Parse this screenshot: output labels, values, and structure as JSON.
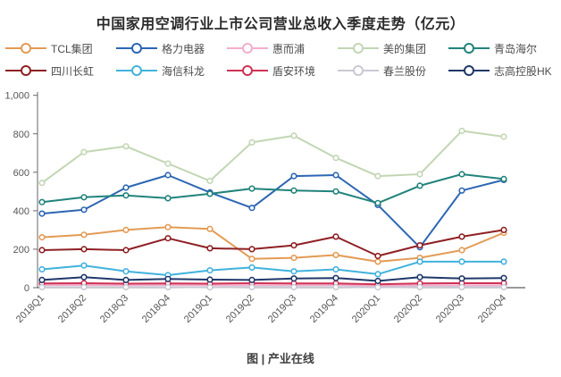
{
  "page": {
    "background": "#ffffff",
    "text_color": "#2b2b2b",
    "axis_color": "#666666"
  },
  "chart_data": {
    "type": "line",
    "title": "中国家用空调行业上市公司营业总收入季度走势（亿元）",
    "caption": "图 | 产业在线",
    "xlabel": "",
    "ylabel": "",
    "ylim": [
      0,
      1000
    ],
    "ytick_interval": 200,
    "ytick_labels": [
      "0",
      "200",
      "400",
      "600",
      "800",
      "1,000"
    ],
    "grid": false,
    "legend_position": "top",
    "marker": "open-circle",
    "categories": [
      "2018Q1",
      "2018Q2",
      "2018Q3",
      "2018Q4",
      "2019Q1",
      "2019Q2",
      "2019Q3",
      "2019Q4",
      "2020Q1",
      "2020Q2",
      "2020Q3",
      "2020Q4"
    ],
    "series": [
      {
        "name": "TCL集团",
        "color": "#E39B55",
        "values": [
          262,
          275,
          300,
          315,
          305,
          150,
          155,
          170,
          135,
          155,
          195,
          285
        ]
      },
      {
        "name": "格力电器",
        "color": "#2C66B3",
        "values": [
          385,
          405,
          520,
          585,
          495,
          415,
          580,
          585,
          430,
          210,
          505,
          560
        ]
      },
      {
        "name": "惠而浦",
        "color": "#F2AECD",
        "values": [
          14,
          14,
          13,
          14,
          13,
          13,
          13,
          14,
          9,
          12,
          12,
          12
        ]
      },
      {
        "name": "美的集团",
        "color": "#C2D6B3",
        "values": [
          545,
          705,
          735,
          645,
          555,
          755,
          790,
          675,
          580,
          590,
          815,
          785
        ]
      },
      {
        "name": "青岛海尔",
        "color": "#21837B",
        "values": [
          445,
          470,
          480,
          465,
          488,
          515,
          505,
          500,
          440,
          530,
          590,
          565
        ]
      },
      {
        "name": "四川长虹",
        "color": "#8E2023",
        "values": [
          195,
          200,
          195,
          257,
          205,
          200,
          220,
          265,
          165,
          220,
          265,
          300
        ]
      },
      {
        "name": "海信科龙",
        "color": "#41B2DC",
        "values": [
          95,
          115,
          85,
          65,
          90,
          105,
          85,
          95,
          70,
          135,
          135,
          135
        ]
      },
      {
        "name": "盾安环境",
        "color": "#CE3355",
        "values": [
          22,
          23,
          21,
          22,
          21,
          23,
          22,
          22,
          17,
          22,
          23,
          23
        ]
      },
      {
        "name": "春兰股份",
        "color": "#C9C9D4",
        "values": [
          3,
          3,
          3,
          3,
          2,
          3,
          3,
          3,
          2,
          3,
          3,
          3
        ]
      },
      {
        "name": "志高控股HK",
        "color": "#20386A",
        "values": [
          40,
          55,
          40,
          45,
          42,
          40,
          48,
          50,
          35,
          55,
          48,
          50
        ]
      }
    ]
  }
}
